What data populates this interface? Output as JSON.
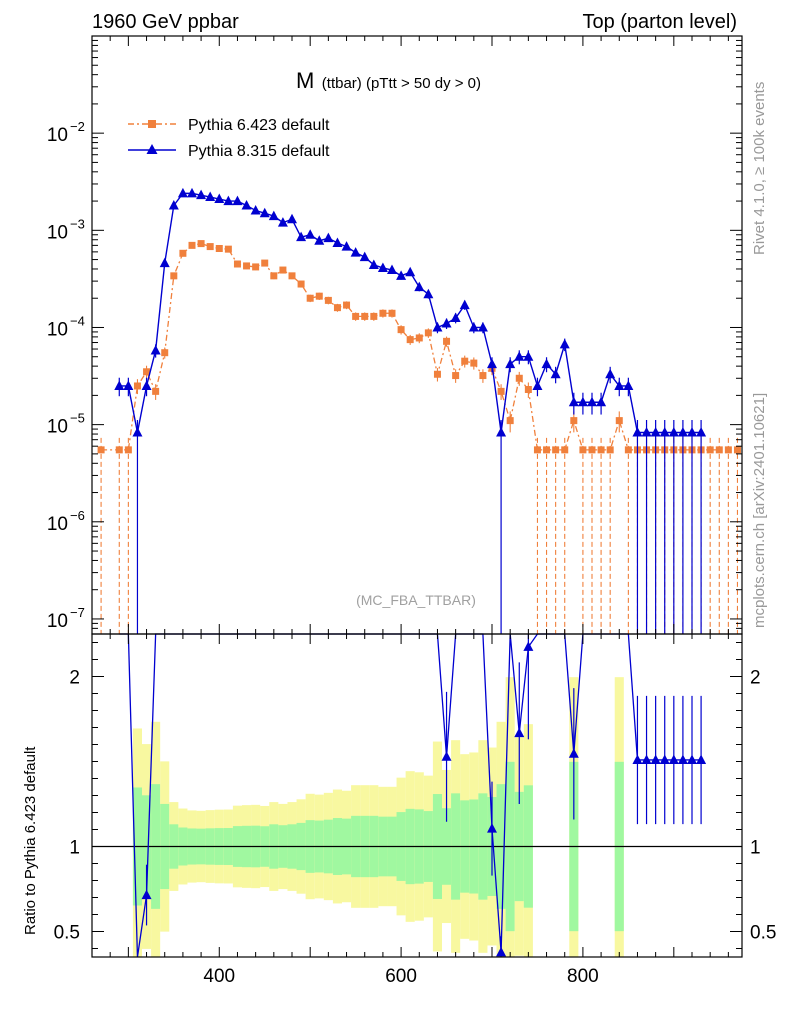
{
  "header": {
    "left": "1960 GeV ppbar",
    "right": "Top (parton level)"
  },
  "side_labels": {
    "top": "Rivet 4.1.0, ≥ 100k events",
    "bottom": "mcplots.cern.ch [arXiv:2401.10621]"
  },
  "colors": {
    "pythia6": "#f0803c",
    "pythia8": "#0000d0",
    "band_inner": "#a0f8a0",
    "band_outer": "#f8f8a0"
  },
  "chart_data": {
    "type": "scatter",
    "title_main": "M",
    "title_sub": "(ttbar) (pTtt > 50 dy > 0)",
    "analysis": "(MC_FBA_TTBAR)",
    "xlim": [
      260,
      975
    ],
    "xticks": [
      400,
      600,
      800
    ],
    "main": {
      "yscale": "log",
      "ylim": [
        7e-08,
        0.1
      ],
      "ytick_labels": [
        {
          "value": 0.01,
          "base": "10",
          "exp": "−2"
        },
        {
          "value": 0.001,
          "base": "10",
          "exp": "−3"
        },
        {
          "value": 0.0001,
          "base": "10",
          "exp": "−4"
        },
        {
          "value": 1e-05,
          "base": "10",
          "exp": "−5"
        },
        {
          "value": 1e-06,
          "base": "10",
          "exp": "−6"
        },
        {
          "value": 1e-07,
          "base": "10",
          "exp": "−7"
        }
      ]
    },
    "ratio": {
      "ylabel": "Ratio to Pythia 6.423 default",
      "ylim": [
        0.35,
        2.25
      ],
      "ytick_labels": [
        {
          "value": 0.5,
          "label": "0.5"
        },
        {
          "value": 1,
          "label": "1"
        },
        {
          "value": 2,
          "label": "2"
        }
      ]
    },
    "series": [
      {
        "name": "Pythia 6.423 default",
        "x": [
          270,
          290,
          300,
          310,
          320,
          330,
          340,
          350,
          360,
          370,
          380,
          390,
          400,
          410,
          420,
          430,
          440,
          450,
          460,
          470,
          480,
          490,
          500,
          510,
          520,
          530,
          540,
          550,
          560,
          570,
          580,
          590,
          600,
          610,
          620,
          630,
          640,
          650,
          660,
          670,
          680,
          690,
          700,
          710,
          720,
          730,
          740,
          750,
          760,
          770,
          780,
          790,
          800,
          810,
          820,
          830,
          840,
          850,
          860,
          870,
          880,
          890,
          900,
          910,
          920,
          930,
          940,
          950,
          960,
          970
        ],
        "y": [
          5.5e-06,
          5.5e-06,
          5.5e-06,
          2.5e-05,
          3.5e-05,
          2.2e-05,
          5.5e-05,
          0.00034,
          0.00058,
          0.0007,
          0.00073,
          0.00068,
          0.00065,
          0.00064,
          0.00045,
          0.00043,
          0.00042,
          0.00046,
          0.00034,
          0.00039,
          0.00034,
          0.00028,
          0.0002,
          0.00021,
          0.00019,
          0.00016,
          0.00017,
          0.00013,
          0.00013,
          0.00013,
          0.00014,
          0.00014,
          9.5e-05,
          7.5e-05,
          7.8e-05,
          8.8e-05,
          3.3e-05,
          7.2e-05,
          3.2e-05,
          4.5e-05,
          4.3e-05,
          3.2e-05,
          3.8e-05,
          2.2e-05,
          1.1e-05,
          3e-05,
          2.3e-05,
          5.5e-06,
          5.5e-06,
          5.5e-06,
          5.5e-06,
          1.1e-05,
          5.5e-06,
          5.5e-06,
          5.5e-06,
          5.5e-06,
          1.1e-05,
          5.5e-06,
          5.5e-06,
          5.5e-06,
          5.5e-06,
          5.5e-06,
          5.5e-06,
          5.5e-06,
          5.5e-06,
          5.5e-06,
          5.5e-06,
          5.5e-06,
          5.5e-06,
          5.5e-06
        ]
      },
      {
        "name": "Pythia 8.315 default",
        "x": [
          290,
          300,
          310,
          320,
          330,
          340,
          350,
          360,
          370,
          380,
          390,
          400,
          410,
          420,
          430,
          440,
          450,
          460,
          470,
          480,
          490,
          500,
          510,
          520,
          530,
          540,
          550,
          560,
          570,
          580,
          590,
          600,
          610,
          620,
          630,
          640,
          650,
          660,
          670,
          680,
          690,
          700,
          710,
          720,
          730,
          740,
          750,
          760,
          770,
          780,
          790,
          800,
          810,
          820,
          830,
          840,
          850,
          860,
          870,
          880,
          890,
          900,
          910,
          920,
          930
        ],
        "y": [
          2.5e-05,
          2.5e-05,
          8.3e-06,
          2.5e-05,
          5.8e-05,
          0.00046,
          0.0018,
          0.0024,
          0.0024,
          0.0023,
          0.0022,
          0.0021,
          0.002,
          0.002,
          0.0018,
          0.0016,
          0.0015,
          0.0014,
          0.0012,
          0.0013,
          0.00085,
          0.0009,
          0.00078,
          0.00083,
          0.00074,
          0.00068,
          0.00059,
          0.00053,
          0.00044,
          0.00041,
          0.00039,
          0.00034,
          0.00037,
          0.00026,
          0.00022,
          0.0001,
          0.00011,
          0.000125,
          0.00017,
          0.0001,
          0.0001,
          4.2e-05,
          8.3e-06,
          4.2e-05,
          5e-05,
          5e-05,
          2.5e-05,
          4.2e-05,
          3.3e-05,
          6.7e-05,
          1.7e-05,
          1.7e-05,
          1.7e-05,
          1.7e-05,
          3.3e-05,
          2.5e-05,
          2.5e-05,
          8.3e-06,
          8.3e-06,
          8.3e-06,
          8.3e-06,
          8.3e-06,
          8.3e-06,
          8.3e-06,
          8.3e-06
        ]
      }
    ]
  }
}
